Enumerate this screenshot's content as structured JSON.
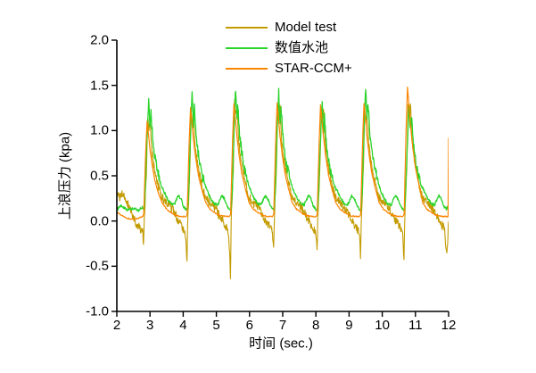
{
  "figure": {
    "background": "#ffffff",
    "axis_color": "#000000",
    "legend": {
      "position": "top-center",
      "items": [
        {
          "label": "Model test",
          "color": "#C39B00"
        },
        {
          "label": "数值水池",
          "color": "#2BD42B"
        },
        {
          "label": "STAR-CCM+",
          "color": "#FB8500"
        }
      ]
    }
  },
  "chart_data": {
    "type": "line",
    "title": "",
    "xlabel": "时间 (sec.)",
    "ylabel": "上浪压力 (kpa)",
    "xlim": [
      2,
      12
    ],
    "ylim": [
      -1.0,
      2.0
    ],
    "xticks": [
      2,
      3,
      4,
      5,
      6,
      7,
      8,
      9,
      10,
      11,
      12
    ],
    "yticks": [
      -1.0,
      -0.5,
      0.0,
      0.5,
      1.0,
      1.5,
      2.0
    ],
    "grid": false,
    "legend_position": "top",
    "period_sec": 1.31,
    "peak_times": [
      2.95,
      4.26,
      5.57,
      6.87,
      8.18,
      9.49,
      10.8
    ],
    "series": [
      {
        "name": "Model test",
        "color": "#C39B00",
        "line_width": 1.1,
        "character": "noisy experimental trace: spikes, decays to ~0.2, drifts below 0, sharp dip just before each next peak",
        "peak_values": [
          1.15,
          1.2,
          1.3,
          1.28,
          1.25,
          1.25,
          1.3
        ],
        "pre_peak_dip_values": [
          -0.27,
          -0.48,
          -0.67,
          -0.32,
          -0.36,
          -0.44,
          -0.47
        ],
        "between_peak_level": 0.15,
        "noise": {
          "base": 0.05,
          "extra": 0.0,
          "threshold": 9
        },
        "lead": [
          [
            2.0,
            0.3
          ],
          [
            2.08,
            0.26
          ],
          [
            2.18,
            0.3
          ],
          [
            2.3,
            0.22
          ],
          [
            2.42,
            0.12
          ],
          [
            2.52,
            0.02
          ],
          [
            2.62,
            -0.04
          ],
          [
            2.7,
            -0.08
          ]
        ],
        "cycle_shape": [
          [
            -0.2,
            "a",
            -0.12
          ],
          [
            -0.17,
            "d",
            0.5
          ],
          [
            -0.145,
            "d",
            1.0
          ],
          [
            -0.125,
            "a",
            0.0
          ],
          [
            -0.06,
            "p",
            0.45
          ],
          [
            -0.02,
            "p",
            1.0
          ],
          [
            0.02,
            "p",
            0.88
          ],
          [
            0.05,
            "p",
            0.97
          ],
          [
            0.1,
            "p",
            0.68
          ],
          [
            0.18,
            "p",
            0.5
          ],
          [
            0.28,
            "p",
            0.36
          ],
          [
            0.4,
            "a",
            0.26
          ],
          [
            0.55,
            "a",
            0.2
          ],
          [
            0.68,
            "a",
            0.16
          ],
          [
            0.8,
            "a",
            0.08
          ],
          [
            0.92,
            "a",
            0.0
          ],
          [
            1.02,
            "a",
            -0.06
          ],
          [
            1.08,
            "a",
            -0.1
          ]
        ],
        "tail": [
          [
            11.92,
            -0.3
          ],
          [
            11.95,
            -0.33
          ],
          [
            11.98,
            -0.15
          ],
          [
            12.0,
            0.0
          ]
        ]
      },
      {
        "name": "数值水池",
        "color": "#2BD42B",
        "line_width": 1.3,
        "character": "numerical wave tank: jagged spikes slightly higher/later, wavy baseline 0.12-0.30 with a hump between peaks",
        "peak_values": [
          1.34,
          1.4,
          1.43,
          1.41,
          1.28,
          1.47,
          1.3
        ],
        "pre_peak_dip_values": [
          0,
          0,
          0,
          0,
          0,
          0,
          0
        ],
        "between_peak_level": 0.2,
        "noise": {
          "base": 0.016,
          "extra": 0.042,
          "threshold": 0.45
        },
        "lead": [
          [
            2.0,
            0.13
          ],
          [
            2.15,
            0.17
          ],
          [
            2.3,
            0.12
          ],
          [
            2.5,
            0.14
          ],
          [
            2.65,
            0.12
          ],
          [
            2.78,
            0.15
          ]
        ],
        "cycle_shape": [
          [
            -0.13,
            "a",
            0.12
          ],
          [
            -0.09,
            "a",
            0.35
          ],
          [
            -0.05,
            "p",
            0.6
          ],
          [
            -0.01,
            "p",
            0.9
          ],
          [
            0.01,
            "p",
            1.0
          ],
          [
            0.05,
            "p",
            0.78
          ],
          [
            0.08,
            "p",
            0.9
          ],
          [
            0.13,
            "p",
            0.68
          ],
          [
            0.2,
            "p",
            0.52
          ],
          [
            0.28,
            "p",
            0.4
          ],
          [
            0.38,
            "p",
            0.3
          ],
          [
            0.48,
            "a",
            0.32
          ],
          [
            0.58,
            "a",
            0.24
          ],
          [
            0.68,
            "a",
            0.19
          ],
          [
            0.78,
            "a",
            0.18
          ],
          [
            0.9,
            "a",
            0.28
          ],
          [
            0.98,
            "a",
            0.25
          ],
          [
            1.06,
            "a",
            0.16
          ],
          [
            1.13,
            "a",
            0.13
          ]
        ],
        "tail": [
          [
            11.93,
            0.14
          ],
          [
            12.0,
            0.16
          ]
        ]
      },
      {
        "name": "STAR-CCM+",
        "color": "#FB8500",
        "line_width": 1.2,
        "character": "smooth CFD trace: sharp rise, smooth exponential decay to ~0.05 plateau; vertical spike to 0.92 at right edge t=12",
        "peak_values": [
          1.1,
          1.25,
          1.3,
          1.3,
          1.28,
          1.3,
          1.48
        ],
        "pre_peak_dip_values": [
          0,
          0,
          0,
          0,
          0,
          0,
          0
        ],
        "between_peak_level": 0.05,
        "noise": {
          "base": 0.006,
          "extra": 0.0,
          "threshold": 9
        },
        "lead": [
          [
            2.0,
            0.1
          ],
          [
            2.15,
            0.06
          ],
          [
            2.3,
            0.03
          ],
          [
            2.5,
            0.02
          ],
          [
            2.65,
            0.03
          ],
          [
            2.76,
            0.05
          ]
        ],
        "cycle_shape": [
          [
            -0.17,
            "a",
            0.05
          ],
          [
            -0.14,
            "a",
            0.08
          ],
          [
            -0.08,
            "p",
            0.7
          ],
          [
            -0.04,
            "p",
            1.0
          ],
          [
            0.0,
            "p",
            0.88
          ],
          [
            0.05,
            "p",
            0.72
          ],
          [
            0.12,
            "p",
            0.55
          ],
          [
            0.2,
            "p",
            0.4
          ],
          [
            0.3,
            "p",
            0.28
          ],
          [
            0.42,
            "a",
            0.2
          ],
          [
            0.55,
            "a",
            0.13
          ],
          [
            0.7,
            "a",
            0.09
          ],
          [
            0.85,
            "a",
            0.06
          ],
          [
            1.0,
            "a",
            0.05
          ],
          [
            1.1,
            "a",
            0.05
          ]
        ],
        "tail": [
          [
            11.9,
            0.05
          ],
          [
            11.985,
            0.05
          ],
          [
            12.0,
            0.92
          ]
        ]
      }
    ],
    "end_spike": {
      "t": 12.0,
      "value": 0.92,
      "series": "STAR-CCM+"
    }
  }
}
